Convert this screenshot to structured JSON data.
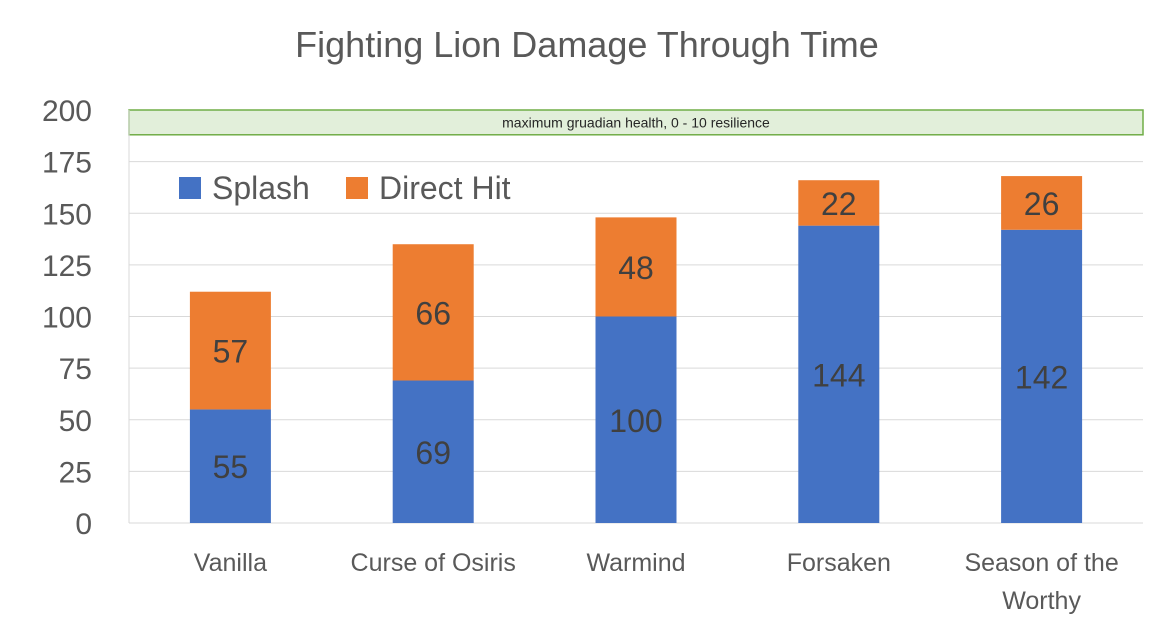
{
  "chart_data": {
    "type": "bar",
    "stacked": true,
    "title": "Fighting Lion Damage Through Time",
    "categories": [
      [
        "Vanilla"
      ],
      [
        "Curse of Osiris"
      ],
      [
        "Warmind"
      ],
      [
        "Forsaken"
      ],
      [
        "Season of the",
        "Worthy"
      ]
    ],
    "series": [
      {
        "name": "Splash",
        "color": "#4472C4",
        "values": [
          55,
          69,
          100,
          144,
          142
        ]
      },
      {
        "name": "Direct Hit",
        "color": "#ED7D31",
        "values": [
          57,
          66,
          48,
          22,
          26
        ]
      }
    ],
    "ylim": [
      0,
      200
    ],
    "yticks": [
      0,
      25,
      50,
      75,
      100,
      125,
      150,
      175,
      200
    ],
    "grid": true,
    "legend": "top-left",
    "annotation": {
      "text": "maximum gruadian health, 0 - 10 resilience",
      "range": [
        188,
        200
      ],
      "fill": "#E2EFDA",
      "stroke": "#70AD47"
    }
  }
}
